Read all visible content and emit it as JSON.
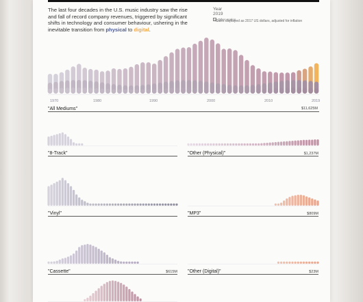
{
  "intro": {
    "text_before": "The last four decades in the U.S. music industry saw the rise and fall of record company revenues, triggered by significant shifts in technology and consumer behaviour, ushering in the inevitable transition from ",
    "physical": "physical",
    "middle": " to ",
    "digital": "digital",
    "end": "."
  },
  "controls": {
    "year_label": "Year",
    "year_value": "2019",
    "other_analog_label": "Other Analog",
    "note": "*Sales displayed as 2017 US dollars, adjusted for inflation"
  },
  "colors": {
    "physical_light": "#d6d3dc",
    "physical_mid": "#c5a9b8",
    "mauve": "#bf93a4",
    "deep": "#8f7288",
    "digital_light": "#f0c2ad",
    "digital_mid": "#eaa58c",
    "orange": "#f2b45c"
  },
  "chart_data": [
    {
      "type": "bar",
      "title": "\"All Mediums\"",
      "value_label": "$11,625M",
      "x_ticks": [
        "1970",
        "1980",
        "1990",
        "2000",
        "2010",
        "2019"
      ],
      "x": [
        1973,
        1974,
        1975,
        1976,
        1977,
        1978,
        1979,
        1980,
        1981,
        1982,
        1983,
        1984,
        1985,
        1986,
        1987,
        1988,
        1989,
        1990,
        1991,
        1992,
        1993,
        1994,
        1995,
        1996,
        1997,
        1998,
        1999,
        2000,
        2001,
        2002,
        2003,
        2004,
        2005,
        2006,
        2007,
        2008,
        2009,
        2010,
        2011,
        2012,
        2013,
        2014,
        2015,
        2016,
        2017,
        2018,
        2019
      ],
      "values": [
        0.62,
        0.62,
        0.67,
        0.75,
        0.85,
        0.93,
        0.81,
        0.77,
        0.75,
        0.7,
        0.72,
        0.79,
        0.77,
        0.79,
        0.84,
        0.92,
        0.98,
        0.98,
        0.94,
        1.05,
        1.17,
        1.29,
        1.4,
        1.44,
        1.45,
        1.56,
        1.65,
        1.75,
        1.69,
        1.57,
        1.4,
        1.41,
        1.36,
        1.21,
        1.05,
        0.89,
        0.79,
        0.7,
        0.69,
        0.67,
        0.66,
        0.66,
        0.67,
        0.73,
        0.78,
        0.85,
        0.95
      ]
    },
    {
      "type": "bar",
      "title": "\"8-Track\"",
      "x": [
        1973,
        1974,
        1975,
        1976,
        1977,
        1978,
        1979,
        1980,
        1981,
        1982,
        1983,
        1984,
        1985
      ],
      "values": [
        0.22,
        0.24,
        0.26,
        0.28,
        0.3,
        0.32,
        0.28,
        0.22,
        0.16,
        0.08,
        0.04,
        0.02,
        0.01
      ]
    },
    {
      "type": "bar",
      "title": "\"Vinyl\"",
      "x": [
        1973,
        1974,
        1975,
        1976,
        1977,
        1978,
        1979,
        1980,
        1981,
        1982,
        1983,
        1984,
        1985,
        1986,
        1987,
        1988,
        1989,
        1990,
        1991,
        1992,
        1993,
        1994,
        1995,
        1996,
        1997,
        1998,
        1999,
        2000,
        2001,
        2002,
        2003,
        2004,
        2005,
        2006,
        2007,
        2008,
        2009,
        2010,
        2011,
        2012,
        2013,
        2014,
        2015,
        2016,
        2017,
        2018,
        2019
      ],
      "values": [
        0.52,
        0.56,
        0.6,
        0.64,
        0.68,
        0.74,
        0.68,
        0.6,
        0.52,
        0.42,
        0.3,
        0.22,
        0.16,
        0.12,
        0.08,
        0.06,
        0.04,
        0.03,
        0.02,
        0.02,
        0.02,
        0.02,
        0.02,
        0.02,
        0.02,
        0.02,
        0.02,
        0.02,
        0.02,
        0.02,
        0.02,
        0.02,
        0.02,
        0.02,
        0.02,
        0.02,
        0.02,
        0.02,
        0.02,
        0.02,
        0.02,
        0.02,
        0.03,
        0.03,
        0.03,
        0.04,
        0.04
      ]
    },
    {
      "type": "bar",
      "title": "\"Cassette\"",
      "value_label": "$615M",
      "x": [
        1973,
        1974,
        1975,
        1976,
        1977,
        1978,
        1979,
        1980,
        1981,
        1982,
        1983,
        1984,
        1985,
        1986,
        1987,
        1988,
        1989,
        1990,
        1991,
        1992,
        1993,
        1994,
        1995,
        1996,
        1997,
        1998,
        1999,
        2000,
        2001,
        2002,
        2003,
        2004,
        2005
      ],
      "values": [
        0.04,
        0.06,
        0.08,
        0.1,
        0.14,
        0.18,
        0.2,
        0.24,
        0.28,
        0.34,
        0.44,
        0.56,
        0.62,
        0.64,
        0.66,
        0.64,
        0.6,
        0.56,
        0.5,
        0.44,
        0.38,
        0.3,
        0.22,
        0.18,
        0.14,
        0.1,
        0.08,
        0.06,
        0.04,
        0.03,
        0.02,
        0.02,
        0.01
      ]
    },
    {
      "type": "bar",
      "title": "\"Other (Physical)\"",
      "value_label": "$1,237M",
      "x": [
        1973,
        1974,
        1975,
        1976,
        1977,
        1978,
        1979,
        1980,
        1981,
        1982,
        1983,
        1984,
        1985,
        1986,
        1987,
        1988,
        1989,
        1990,
        1991,
        1992,
        1993,
        1994,
        1995,
        1996,
        1997,
        1998,
        1999,
        2000,
        2001,
        2002,
        2003,
        2004,
        2005,
        2006,
        2007,
        2008,
        2009,
        2010,
        2011,
        2012,
        2013,
        2014,
        2015,
        2016,
        2017,
        2018,
        2019
      ],
      "values": [
        0.01,
        0.01,
        0.01,
        0.01,
        0.01,
        0.01,
        0.01,
        0.01,
        0.01,
        0.01,
        0.01,
        0.01,
        0.01,
        0.01,
        0.01,
        0.01,
        0.02,
        0.02,
        0.03,
        0.04,
        0.05,
        0.06,
        0.07,
        0.08,
        0.09,
        0.1,
        0.11,
        0.12,
        0.13,
        0.14,
        0.15,
        0.16,
        0.17,
        0.18,
        0.19,
        0.2,
        0.21,
        0.22,
        0.23,
        0.24,
        0.25,
        0.26,
        0.26,
        0.27,
        0.27,
        0.28,
        0.28
      ]
    },
    {
      "type": "bar",
      "title": "\"MP3\"",
      "value_label": "$809M",
      "x": [
        2004,
        2005,
        2006,
        2007,
        2008,
        2009,
        2010,
        2011,
        2012,
        2013,
        2014,
        2015,
        2016,
        2017,
        2018,
        2019
      ],
      "values": [
        0.02,
        0.06,
        0.12,
        0.2,
        0.28,
        0.34,
        0.38,
        0.4,
        0.42,
        0.42,
        0.4,
        0.36,
        0.32,
        0.28,
        0.24,
        0.2
      ]
    },
    {
      "type": "bar",
      "title": "\"Other (Digital)\"",
      "value_label": "$23M",
      "x": [
        2005,
        2006,
        2007,
        2008,
        2009,
        2010,
        2011,
        2012,
        2013,
        2014,
        2015,
        2016,
        2017,
        2018,
        2019
      ],
      "values": [
        0.02,
        0.03,
        0.04,
        0.04,
        0.04,
        0.04,
        0.04,
        0.04,
        0.04,
        0.04,
        0.04,
        0.04,
        0.04,
        0.04,
        0.04
      ]
    },
    {
      "type": "bar",
      "title": "",
      "x": [
        1986,
        1987,
        1988,
        1989,
        1990,
        1991,
        1992,
        1993,
        1994,
        1995,
        1996,
        1997,
        1998,
        1999,
        2000,
        2001,
        2002,
        2003,
        2004,
        2005,
        2006
      ],
      "values": [
        0.1,
        0.18,
        0.28,
        0.4,
        0.52,
        0.64,
        0.76,
        0.86,
        0.94,
        1.0,
        1.02,
        1.0,
        0.96,
        0.9,
        0.82,
        0.72,
        0.6,
        0.48,
        0.36,
        0.24,
        0.14
      ]
    }
  ]
}
